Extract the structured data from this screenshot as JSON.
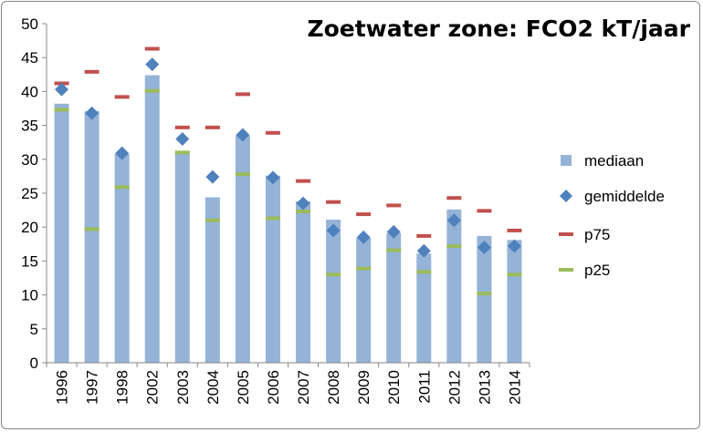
{
  "chart_data": {
    "type": "bar",
    "title": "Zoetwater zone: FCO2 kT/jaar",
    "xlabel": "",
    "ylabel": "",
    "ylim": [
      0,
      50
    ],
    "yticks": [
      0,
      5,
      10,
      15,
      20,
      25,
      30,
      35,
      40,
      45,
      50
    ],
    "grid": false,
    "legend_position": "right",
    "categories": [
      "1996",
      "1997",
      "1998",
      "2002",
      "2003",
      "2004",
      "2005",
      "2006",
      "2007",
      "2008",
      "2009",
      "2010",
      "2011",
      "2012",
      "2013",
      "2014"
    ],
    "series": [
      {
        "name": "mediaan",
        "kind": "bar",
        "color": "#95b3d7",
        "values": [
          38.2,
          37.1,
          30.8,
          42.4,
          31.2,
          24.4,
          33.5,
          27.6,
          23.8,
          21.1,
          18.4,
          19.1,
          16.1,
          22.6,
          18.7,
          18.1
        ]
      },
      {
        "name": "gemiddelde",
        "kind": "marker",
        "color": "#4f81bd",
        "values": [
          40.3,
          36.8,
          30.9,
          44.0,
          33.0,
          27.4,
          33.6,
          27.3,
          23.5,
          19.5,
          18.5,
          19.3,
          16.5,
          21.0,
          17.0,
          17.2
        ]
      },
      {
        "name": "p75",
        "kind": "dash",
        "color": "#c0504d",
        "values": [
          41.2,
          42.9,
          39.2,
          46.3,
          34.7,
          34.7,
          39.6,
          33.9,
          26.8,
          23.7,
          21.9,
          23.2,
          18.7,
          24.3,
          22.4,
          19.5
        ]
      },
      {
        "name": "p25",
        "kind": "dash",
        "color": "#9bbb59",
        "values": [
          37.3,
          19.7,
          25.9,
          40.1,
          31.0,
          21.0,
          27.8,
          21.3,
          22.3,
          13.0,
          13.9,
          16.6,
          13.4,
          17.2,
          10.2,
          13.0
        ]
      }
    ]
  }
}
